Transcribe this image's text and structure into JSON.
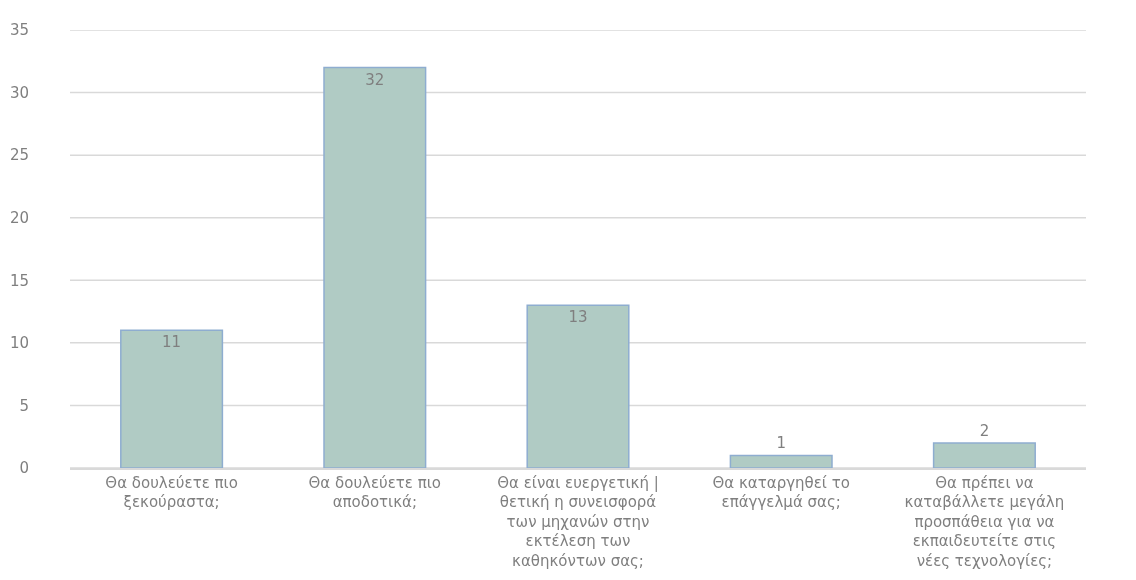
{
  "chart_data": {
    "type": "bar",
    "categories": [
      "Θα δουλεύετε πιο ξεκούραστα;",
      "Θα δουλεύετε πιο αποδοτικά;",
      "Θα είναι ευεργετική | θετική η συνεισφορά των μηχανών στην εκτέλεση των καθηκόντων σας;",
      "Θα καταργηθεί το επάγγελμά σας;",
      "Θα πρέπει να καταβάλλετε μεγάλη προσπάθεια για να εκπαιδευτείτε στις νέες τεχνολογίες;"
    ],
    "values": [
      11,
      32,
      13,
      1,
      2
    ],
    "color": "#b0cbc4",
    "ylim": [
      0,
      35
    ],
    "yticks": [
      0,
      5,
      10,
      15,
      20,
      25,
      30,
      35
    ],
    "grid": "y",
    "data_labels": true
  }
}
